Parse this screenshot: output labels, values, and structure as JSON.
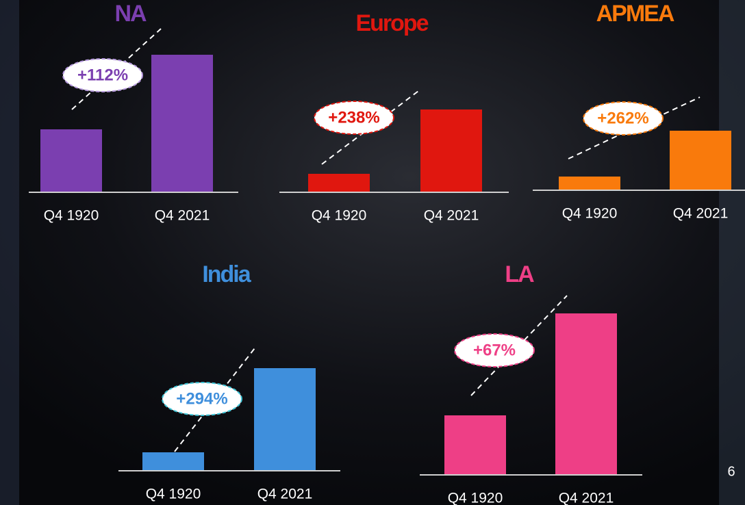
{
  "chart_data": [
    {
      "type": "bar",
      "title": "NA",
      "categories": [
        "Q4 1920",
        "Q4 2021"
      ],
      "values": [
        92,
        201
      ],
      "color": "#7b3fb0",
      "annotation": "+112%",
      "ylim": [
        0,
        240
      ]
    },
    {
      "type": "bar",
      "title": "Europe",
      "categories": [
        "Q4 1920",
        "Q4 2021"
      ],
      "values": [
        27,
        121
      ],
      "color": "#e0170f",
      "annotation": "+238%",
      "ylim": [
        0,
        240
      ]
    },
    {
      "type": "bar",
      "title": "APMEA",
      "categories": [
        "Q4 1920",
        "Q4 2021"
      ],
      "values": [
        20,
        87
      ],
      "color": "#f97a0c",
      "annotation": "+262%",
      "ylim": [
        0,
        240
      ]
    },
    {
      "type": "bar",
      "title": "India",
      "categories": [
        "Q4 1920",
        "Q4 2021"
      ],
      "values": [
        27,
        150
      ],
      "color": "#3f8fdc",
      "annotation": "+294%",
      "ylim": [
        0,
        240
      ]
    },
    {
      "type": "bar",
      "title": "LA",
      "categories": [
        "Q4 1920",
        "Q4 2021"
      ],
      "values": [
        87,
        236
      ],
      "color": "#ee3f86",
      "annotation": "+67%",
      "ylim": [
        0,
        240
      ]
    }
  ],
  "page_number": "6"
}
